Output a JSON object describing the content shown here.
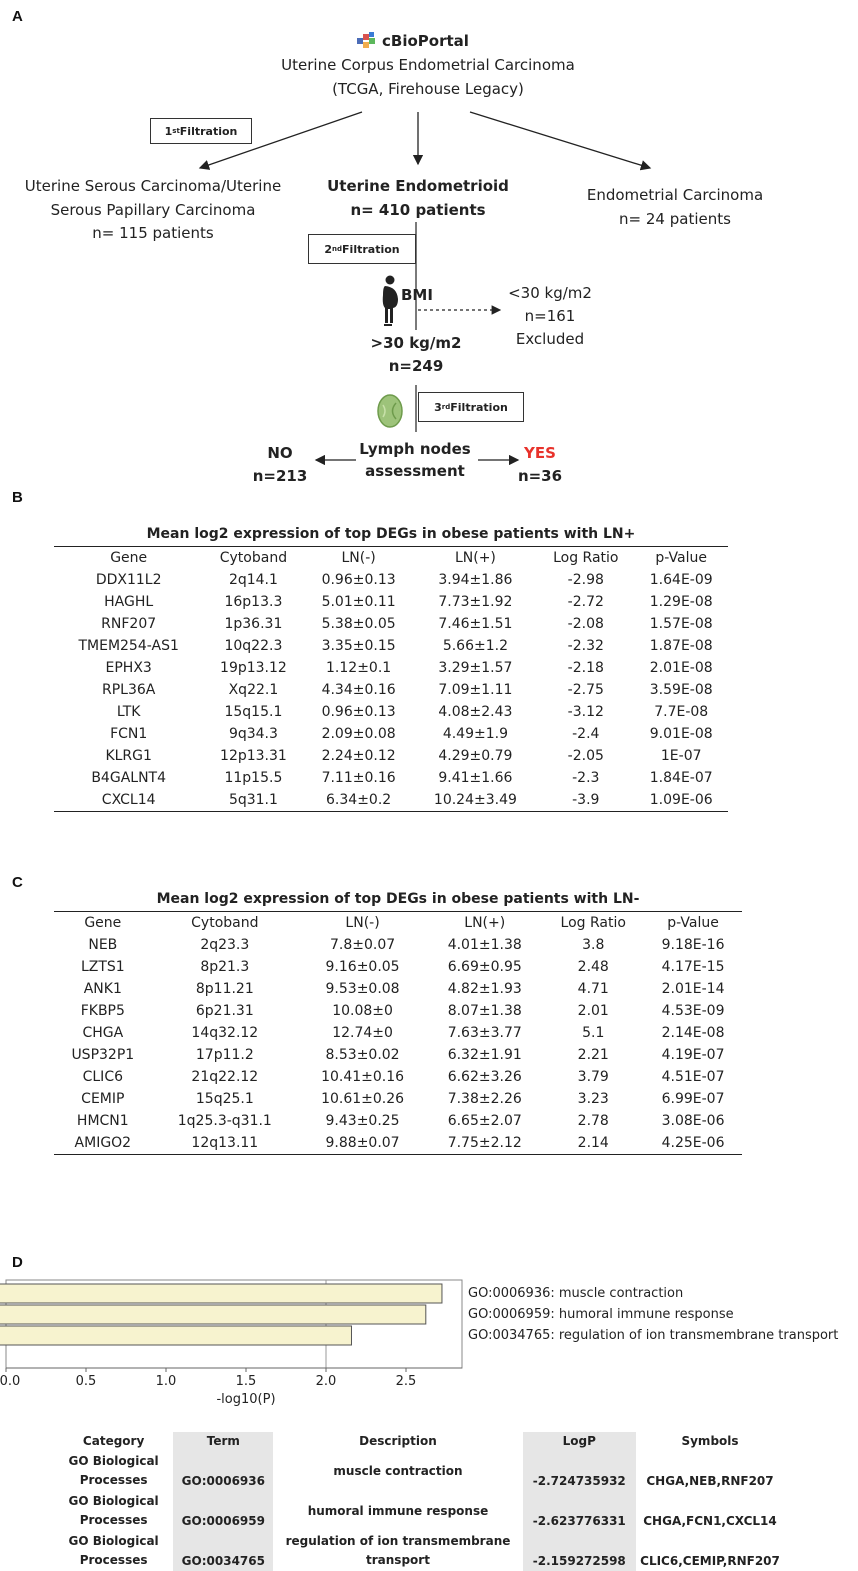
{
  "panel_a": {
    "label": "A",
    "logo_text": "cBioPortal",
    "study_line1": "Uterine Corpus Endometrial Carcinoma",
    "study_line2": "(TCGA, Firehouse Legacy)",
    "filter1_num": "1",
    "filter1_sup": "st",
    "filter1_word": " Filtration",
    "left_line1": "Uterine Serous Carcinoma/Uterine",
    "left_line2": "Serous Papillary Carcinoma",
    "left_line3": "n= 115 patients",
    "center_line1": "Uterine Endometrioid",
    "center_line2": "n= 410 patients",
    "right_line1": "Endometrial Carcinoma",
    "right_line2": "n= 24 patients",
    "filter2_num": "2",
    "filter2_sup": "nd",
    "filter2_word": " Filtration",
    "bmi_label": "BMI",
    "excluded_line1": "<30 kg/m2",
    "excluded_line2": "n=161",
    "excluded_line3": "Excluded",
    "obese_line1": ">30 kg/m2",
    "obese_line2": "n=249",
    "filter3_num": "3",
    "filter3_sup": "rd",
    "filter3_word": " Filtration",
    "lymph_line1": "Lymph nodes",
    "lymph_line2": "assessment",
    "no_label": "NO",
    "no_count": "n=213",
    "yes_label": "YES",
    "yes_count": "n=36",
    "colors": {
      "yes": "#e8322b",
      "lymph_node": "#9dc37a"
    }
  },
  "panel_b": {
    "label": "B",
    "title": "Mean log2 expression of top DEGs in obese patients with LN+",
    "headers": [
      "Gene",
      "Cytoband",
      "LN(-)",
      "LN(+)",
      "Log Ratio",
      "p-Value"
    ],
    "rows": [
      [
        "DDX11L2",
        "2q14.1",
        "0.96±0.13",
        "3.94±1.86",
        "-2.98",
        "1.64E-09"
      ],
      [
        "HAGHL",
        "16p13.3",
        "5.01±0.11",
        "7.73±1.92",
        "-2.72",
        "1.29E-08"
      ],
      [
        "RNF207",
        "1p36.31",
        "5.38±0.05",
        "7.46±1.51",
        "-2.08",
        "1.57E-08"
      ],
      [
        "TMEM254-AS1",
        "10q22.3",
        "3.35±0.15",
        "5.66±1.2",
        "-2.32",
        "1.87E-08"
      ],
      [
        "EPHX3",
        "19p13.12",
        "1.12±0.1",
        "3.29±1.57",
        "-2.18",
        "2.01E-08"
      ],
      [
        "RPL36A",
        "Xq22.1",
        "4.34±0.16",
        "7.09±1.11",
        "-2.75",
        "3.59E-08"
      ],
      [
        "LTK",
        "15q15.1",
        "0.96±0.13",
        "4.08±2.43",
        "-3.12",
        "7.7E-08"
      ],
      [
        "FCN1",
        "9q34.3",
        "2.09±0.08",
        "4.49±1.9",
        "-2.4",
        "9.01E-08"
      ],
      [
        "KLRG1",
        "12p13.31",
        "2.24±0.12",
        "4.29±0.79",
        "-2.05",
        "1E-07"
      ],
      [
        "B4GALNT4",
        "11p15.5",
        "7.11±0.16",
        "9.41±1.66",
        "-2.3",
        "1.84E-07"
      ],
      [
        "CXCL14",
        "5q31.1",
        "6.34±0.2",
        "10.24±3.49",
        "-3.9",
        "1.09E-06"
      ]
    ]
  },
  "panel_c": {
    "label": "C",
    "title": "Mean log2 expression of top DEGs in obese patients with LN-",
    "headers": [
      "Gene",
      "Cytoband",
      "LN(-)",
      "LN(+)",
      "Log Ratio",
      "p-Value"
    ],
    "rows": [
      [
        "NEB",
        "2q23.3",
        "7.8±0.07",
        "4.01±1.38",
        "3.8",
        "9.18E-16"
      ],
      [
        "LZTS1",
        "8p21.3",
        "9.16±0.05",
        "6.69±0.95",
        "2.48",
        "4.17E-15"
      ],
      [
        "ANK1",
        "8p11.21",
        "9.53±0.08",
        "4.82±1.93",
        "4.71",
        "2.01E-14"
      ],
      [
        "FKBP5",
        "6p21.31",
        "10.08±0",
        "8.07±1.38",
        "2.01",
        "4.53E-09"
      ],
      [
        "CHGA",
        "14q32.12",
        "12.74±0",
        "7.63±3.77",
        "5.1",
        "2.14E-08"
      ],
      [
        "USP32P1",
        "17p11.2",
        "8.53±0.02",
        "6.32±1.91",
        "2.21",
        "4.19E-07"
      ],
      [
        "CLIC6",
        "21q22.12",
        "10.41±0.16",
        "6.62±3.26",
        "3.79",
        "4.51E-07"
      ],
      [
        "CEMIP",
        "15q25.1",
        "10.61±0.26",
        "7.38±2.26",
        "3.23",
        "6.99E-07"
      ],
      [
        "HMCN1",
        "1q25.3-q31.1",
        "9.43±0.25",
        "6.65±2.07",
        "2.78",
        "3.08E-06"
      ],
      [
        "AMIGO2",
        "12q13.11",
        "9.88±0.07",
        "7.75±2.12",
        "2.14",
        "4.25E-06"
      ]
    ]
  },
  "panel_d": {
    "label": "D",
    "chart_data": {
      "type": "bar",
      "orientation": "horizontal",
      "categories": [
        "GO:0006936: muscle contraction",
        "GO:0006959: humoral immune response",
        "GO:0034765: regulation of ion transmembrane transport"
      ],
      "values": [
        2.724735932,
        2.623776331,
        2.159272598
      ],
      "xlabel": "-log10(P)",
      "xticks": [
        "0.0",
        "0.5",
        "1.0",
        "1.5",
        "2.0",
        "2.5"
      ],
      "xlim": [
        0,
        2.85
      ],
      "bar_color": "#f7f3cf",
      "grid_line_at": 2.0
    },
    "table": {
      "headers": [
        "Category",
        "Term",
        "Description",
        "LogP",
        "Symbols"
      ],
      "rows": [
        [
          "GO Biological Processes",
          "GO:0006936",
          "muscle contraction",
          "-2.724735932",
          "CHGA,NEB,RNF207"
        ],
        [
          "GO Biological Processes",
          "GO:0006959",
          "humoral immune response",
          "-2.623776331",
          "CHGA,FCN1,CXCL14"
        ],
        [
          "GO Biological Processes",
          "GO:0034765",
          "regulation of ion transmembrane transport",
          "-2.159272598",
          "CLIC6,CEMIP,RNF207"
        ]
      ]
    }
  }
}
